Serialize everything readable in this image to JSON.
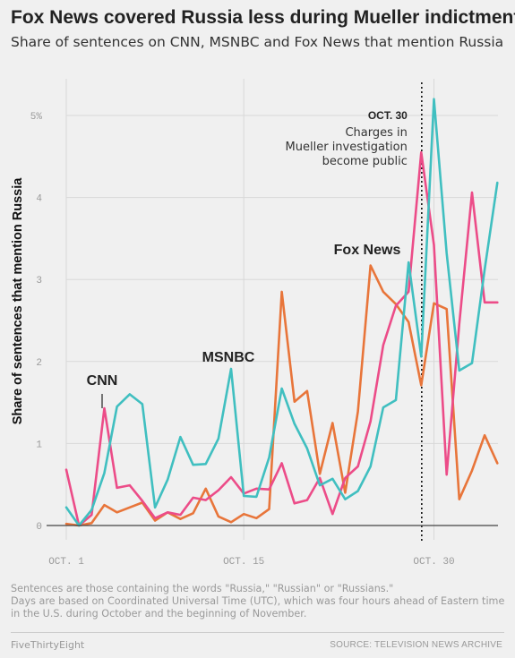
{
  "header": {
    "title": "Fox News covered Russia less during Mueller indictments",
    "subtitle": "Share of sentences on CNN, MSNBC and Fox News that mention Russia"
  },
  "footer": {
    "note_line1": "Sentences are those containing the words \"Russia,\" \"Russian\" or \"Russians.\"",
    "note_line2": "Days are based on Coordinated Universal Time (UTC), which was four hours ahead of Eastern time in the U.S. during October and the beginning of November.",
    "brand": "FiveThirtyEight",
    "source": "SOURCE: TELEVISION NEWS ARCHIVE"
  },
  "chart_data": {
    "type": "line",
    "title": "Fox News covered Russia less during Mueller indictments",
    "subtitle": "Share of sentences on CNN, MSNBC and Fox News that mention Russia",
    "ylabel": "Share of sentences that mention Russia",
    "xlabel": "",
    "ylim": [
      0,
      5.3
    ],
    "yticks": [
      0,
      1,
      2,
      3,
      4,
      5
    ],
    "ytick_labels": [
      "0",
      "1",
      "2",
      "3",
      "4",
      "5%"
    ],
    "xlim": [
      1,
      35
    ],
    "xticks": [
      1,
      15,
      30
    ],
    "xtick_labels": [
      "OCT. 1",
      "OCT. 15",
      "OCT. 30"
    ],
    "grid": true,
    "x": [
      1,
      2,
      3,
      4,
      5,
      6,
      7,
      8,
      9,
      10,
      11,
      12,
      13,
      14,
      15,
      16,
      17,
      18,
      19,
      20,
      21,
      22,
      23,
      24,
      25,
      26,
      27,
      28,
      29,
      30,
      31,
      32,
      33,
      34,
      35
    ],
    "series": [
      {
        "name": "CNN",
        "color": "#ec4c88",
        "values": [
          0.68,
          0.0,
          0.13,
          1.43,
          0.46,
          0.49,
          0.3,
          0.09,
          0.16,
          0.13,
          0.34,
          0.31,
          0.43,
          0.59,
          0.39,
          0.45,
          0.44,
          0.76,
          0.27,
          0.31,
          0.58,
          0.14,
          0.58,
          0.72,
          1.27,
          2.2,
          2.68,
          2.85,
          4.55,
          3.42,
          0.62,
          2.46,
          4.06,
          2.72,
          2.72
        ]
      },
      {
        "name": "MSNBC",
        "color": "#40bfc0",
        "values": [
          0.22,
          0.0,
          0.19,
          0.64,
          1.45,
          1.6,
          1.48,
          0.22,
          0.56,
          1.08,
          0.74,
          0.75,
          1.06,
          1.91,
          0.36,
          0.35,
          0.83,
          1.67,
          1.24,
          0.94,
          0.49,
          0.57,
          0.32,
          0.42,
          0.72,
          1.44,
          1.53,
          3.21,
          2.06,
          5.2,
          3.32,
          1.89,
          1.98,
          3.12,
          4.18
        ]
      },
      {
        "name": "Fox News",
        "color": "#e8753a",
        "values": [
          0.02,
          0.0,
          0.03,
          0.25,
          0.16,
          0.22,
          0.28,
          0.06,
          0.16,
          0.08,
          0.15,
          0.45,
          0.11,
          0.04,
          0.14,
          0.09,
          0.2,
          2.85,
          1.51,
          1.64,
          0.63,
          1.25,
          0.4,
          1.39,
          3.17,
          2.85,
          2.7,
          2.48,
          1.71,
          2.71,
          2.64,
          0.32,
          0.67,
          1.1,
          0.76
        ]
      }
    ],
    "annotations": [
      {
        "x": 29,
        "date": "OCT. 30",
        "text": [
          "Charges in",
          "Mueller investigation",
          "become public"
        ]
      }
    ]
  }
}
